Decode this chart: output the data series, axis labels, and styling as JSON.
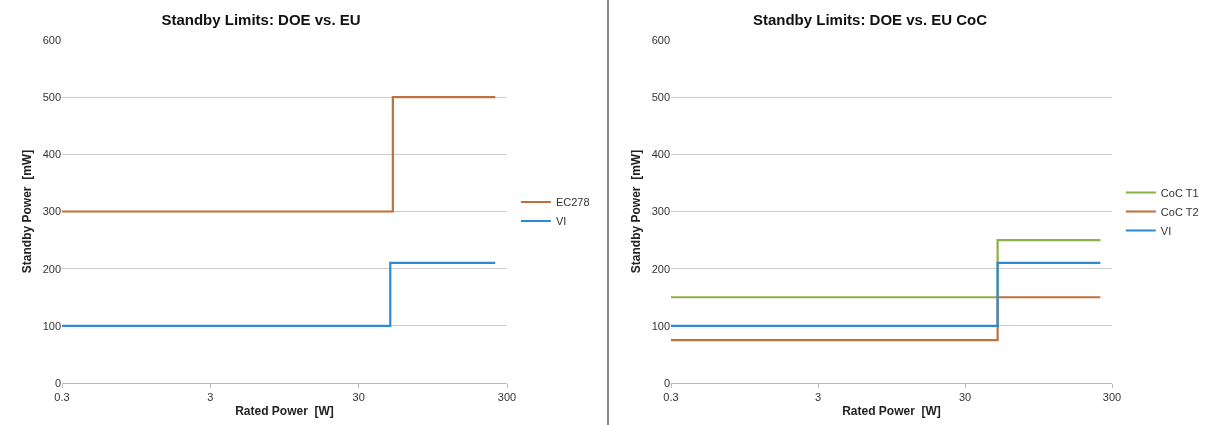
{
  "chart_data": [
    {
      "type": "step",
      "title": "Standby Limits: DOE vs. EU",
      "xlabel": "Rated Power  [W]",
      "ylabel": "Standby Power  [mW]",
      "log": "x",
      "xlim": [
        0.3,
        300
      ],
      "xticks": [
        0.3,
        3,
        30,
        300
      ],
      "ylim": [
        0,
        600
      ],
      "yticks": [
        0,
        100,
        200,
        300,
        400,
        500,
        600
      ],
      "grid": "y",
      "legend": "right",
      "series": [
        {
          "name": "EC278",
          "color": "#c0703a",
          "x": [
            0.3,
            51,
            250
          ],
          "values": [
            300,
            500,
            500
          ]
        },
        {
          "name": "VI",
          "color": "#2e8bd0",
          "x": [
            0.3,
            49,
            250
          ],
          "values": [
            100,
            210,
            210
          ]
        }
      ]
    },
    {
      "type": "step",
      "title": "Standby Limits: DOE vs. EU CoC",
      "xlabel": "Rated Power  [W]",
      "ylabel": "Standby Power  [mW]",
      "log": "x",
      "xlim": [
        0.3,
        300
      ],
      "xticks": [
        0.3,
        3,
        30,
        300
      ],
      "ylim": [
        0,
        600
      ],
      "yticks": [
        0,
        100,
        200,
        300,
        400,
        500,
        600
      ],
      "grid": "y",
      "legend": "right",
      "series": [
        {
          "name": "CoC T1",
          "color": "#8db04a",
          "x": [
            0.3,
            50,
            250
          ],
          "values": [
            150,
            250,
            250
          ]
        },
        {
          "name": "CoC T2",
          "color": "#c0703a",
          "x": [
            0.3,
            50,
            250
          ],
          "values": [
            75,
            150,
            150
          ]
        },
        {
          "name": "VI",
          "color": "#2e8bd0",
          "x": [
            0.3,
            50,
            250
          ],
          "values": [
            100,
            210,
            210
          ]
        }
      ]
    }
  ]
}
